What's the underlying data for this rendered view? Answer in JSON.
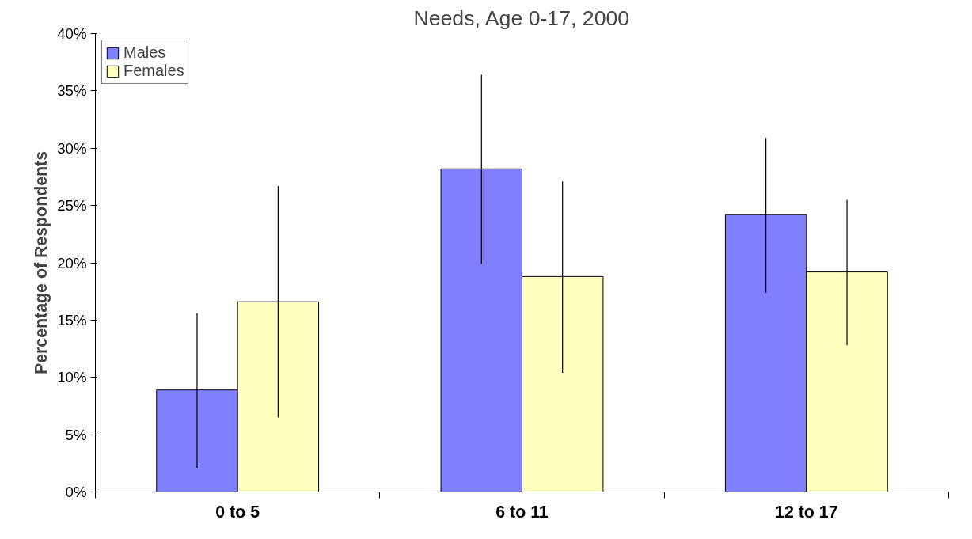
{
  "chart_data": {
    "type": "bar",
    "title": "Needs, Age 0-17, 2000",
    "ylabel": "Percentage of Respondents",
    "categories": [
      "0 to 5",
      "6 to 11",
      "12 to 17"
    ],
    "series": [
      {
        "name": "Males",
        "color": "#8080ff",
        "values": [
          8.9,
          28.2,
          24.2
        ],
        "errors": [
          [
            2.1,
            15.6
          ],
          [
            19.9,
            36.4
          ],
          [
            17.4,
            30.9
          ]
        ]
      },
      {
        "name": "Females",
        "color": "#ffffc0",
        "values": [
          16.6,
          18.8,
          19.2
        ],
        "errors": [
          [
            6.5,
            26.7
          ],
          [
            10.4,
            27.1
          ],
          [
            12.8,
            25.5
          ]
        ]
      }
    ],
    "ylim": [
      0,
      40
    ],
    "yticks": [
      {
        "value": 0,
        "label": "0%"
      },
      {
        "value": 5,
        "label": "5%"
      },
      {
        "value": 10,
        "label": "10%"
      },
      {
        "value": 15,
        "label": "15%"
      },
      {
        "value": 20,
        "label": "20%"
      },
      {
        "value": 25,
        "label": "25%"
      },
      {
        "value": 30,
        "label": "30%"
      },
      {
        "value": 35,
        "label": "35%"
      },
      {
        "value": 40,
        "label": "40%"
      }
    ],
    "grid": false,
    "legend": "top left"
  }
}
